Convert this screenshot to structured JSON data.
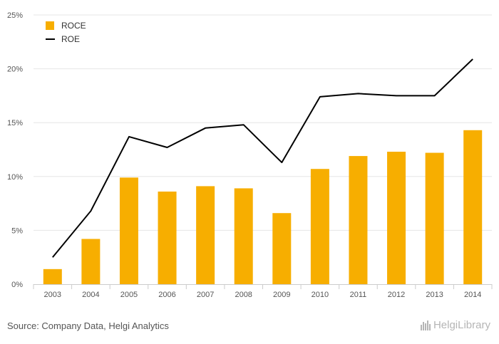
{
  "chart_data": {
    "type": "bar",
    "categories": [
      "2003",
      "2004",
      "2005",
      "2006",
      "2007",
      "2008",
      "2009",
      "2010",
      "2011",
      "2012",
      "2013",
      "2014"
    ],
    "series": [
      {
        "name": "ROCE",
        "kind": "bar",
        "color": "#F7AE00",
        "values": [
          1.4,
          4.2,
          9.9,
          8.6,
          9.1,
          8.9,
          6.6,
          10.7,
          11.9,
          12.3,
          12.2,
          14.3
        ]
      },
      {
        "name": "ROE",
        "kind": "line",
        "color": "#000000",
        "values": [
          2.5,
          6.8,
          13.7,
          12.7,
          14.5,
          14.8,
          11.3,
          17.4,
          17.7,
          17.5,
          17.5,
          20.9
        ]
      }
    ],
    "y_ticks": [
      "0%",
      "5%",
      "10%",
      "15%",
      "20%",
      "25%"
    ],
    "ylim": [
      0,
      25
    ],
    "grid": true,
    "legend": "top-left"
  },
  "footer": {
    "source": "Source: Company Data, Helgi Analytics",
    "logo_text": "HelgiLibrary"
  }
}
